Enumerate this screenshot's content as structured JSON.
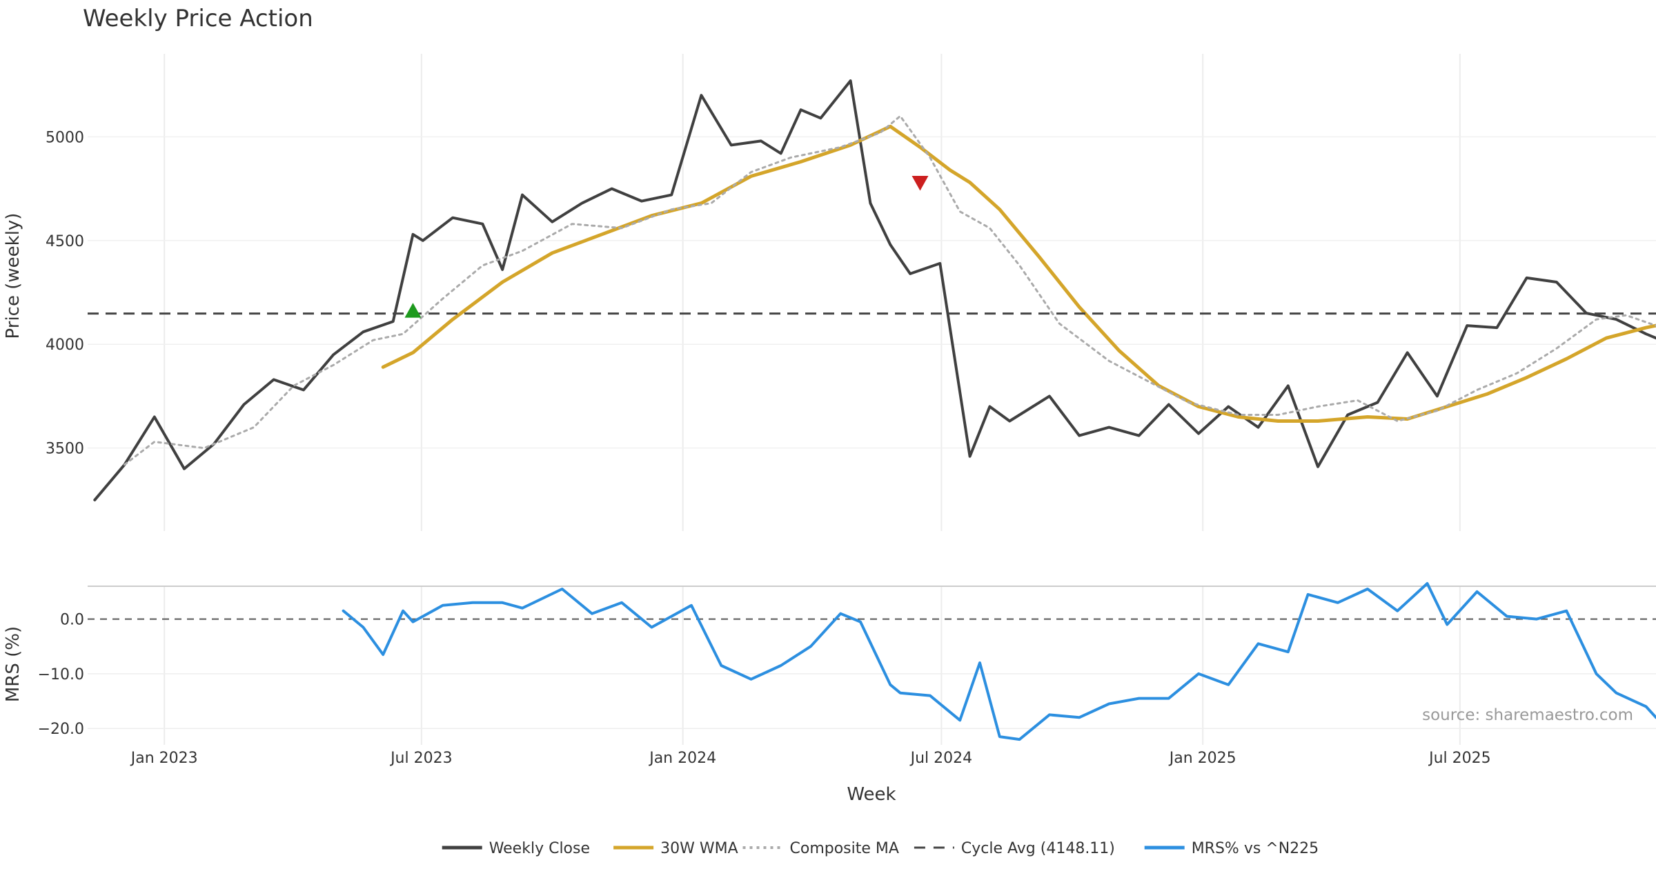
{
  "chart_data": {
    "type": "line",
    "title": "Weekly Price Action",
    "source_note": "source: sharemaestro.com",
    "xlabel": "Week",
    "x_ticks": [
      {
        "label": "Jan 2023",
        "date": "2023-01-01"
      },
      {
        "label": "Jul 2023",
        "date": "2023-07-01"
      },
      {
        "label": "Jan 2024",
        "date": "2024-01-01"
      },
      {
        "label": "Jul 2024",
        "date": "2024-07-01"
      },
      {
        "label": "Jan 2025",
        "date": "2025-01-01"
      },
      {
        "label": "Jul 2025",
        "date": "2025-07-01"
      }
    ],
    "x_range": [
      "2022-11-08",
      "2025-11-16"
    ],
    "price_panel": {
      "ylabel": "Price (weekly)",
      "ylim": [
        3100,
        5400
      ],
      "y_ticks": [
        3500,
        4000,
        4500,
        5000
      ],
      "grid": true,
      "series": [
        {
          "name": "Weekly Close",
          "color": "#404040",
          "style": "solid",
          "x": [
            "2022-11-13",
            "2022-12-04",
            "2022-12-25",
            "2023-01-15",
            "2023-02-05",
            "2023-02-26",
            "2023-03-19",
            "2023-04-09",
            "2023-04-30",
            "2023-05-21",
            "2023-06-11",
            "2023-06-25",
            "2023-07-02",
            "2023-07-23",
            "2023-08-13",
            "2023-08-27",
            "2023-09-10",
            "2023-10-01",
            "2023-10-22",
            "2023-11-12",
            "2023-12-03",
            "2023-12-24",
            "2024-01-14",
            "2024-02-04",
            "2024-02-25",
            "2024-03-10",
            "2024-03-24",
            "2024-04-07",
            "2024-04-28",
            "2024-05-12",
            "2024-05-26",
            "2024-06-09",
            "2024-06-30",
            "2024-07-21",
            "2024-08-04",
            "2024-08-18",
            "2024-09-15",
            "2024-10-06",
            "2024-10-27",
            "2024-11-17",
            "2024-12-08",
            "2024-12-29",
            "2025-01-19",
            "2025-02-09",
            "2025-03-02",
            "2025-03-23",
            "2025-04-13",
            "2025-05-04",
            "2025-05-25",
            "2025-06-15",
            "2025-07-06",
            "2025-07-27",
            "2025-08-17",
            "2025-09-07",
            "2025-09-28",
            "2025-10-19",
            "2025-11-09",
            "2025-11-16"
          ],
          "values": [
            3250,
            3420,
            3650,
            3400,
            3520,
            3710,
            3830,
            3780,
            3950,
            4060,
            4110,
            4530,
            4500,
            4610,
            4580,
            4360,
            4720,
            4590,
            4680,
            4750,
            4690,
            4720,
            5200,
            4960,
            4980,
            4920,
            5130,
            5090,
            5270,
            4680,
            4480,
            4340,
            4390,
            3460,
            3700,
            3630,
            3750,
            3560,
            3600,
            3560,
            3710,
            3570,
            3700,
            3600,
            3800,
            3410,
            3660,
            3720,
            3960,
            3750,
            4090,
            4080,
            4320,
            4300,
            4150,
            4120,
            4050,
            4030
          ]
        },
        {
          "name": "30W WMA",
          "color": "#D4A52A",
          "style": "solid",
          "x": [
            "2023-06-04",
            "2023-06-25",
            "2023-07-23",
            "2023-08-27",
            "2023-10-01",
            "2023-11-05",
            "2023-12-10",
            "2024-01-14",
            "2024-02-18",
            "2024-03-24",
            "2024-04-28",
            "2024-05-26",
            "2024-06-16",
            "2024-07-07",
            "2024-07-21",
            "2024-08-11",
            "2024-09-08",
            "2024-10-06",
            "2024-11-03",
            "2024-12-01",
            "2024-12-29",
            "2025-01-26",
            "2025-02-23",
            "2025-03-23",
            "2025-04-27",
            "2025-05-25",
            "2025-06-22",
            "2025-07-20",
            "2025-08-17",
            "2025-09-14",
            "2025-10-12",
            "2025-11-09",
            "2025-11-16"
          ],
          "values": [
            3890,
            3960,
            4120,
            4300,
            4440,
            4530,
            4620,
            4680,
            4810,
            4880,
            4960,
            5050,
            4950,
            4840,
            4780,
            4650,
            4420,
            4180,
            3970,
            3800,
            3700,
            3650,
            3630,
            3630,
            3650,
            3640,
            3700,
            3760,
            3840,
            3930,
            4030,
            4080,
            4090
          ]
        },
        {
          "name": "Composite MA",
          "color": "#AAAAAA",
          "style": "dotted",
          "x": [
            "2022-12-04",
            "2022-12-25",
            "2023-01-29",
            "2023-03-05",
            "2023-04-02",
            "2023-04-30",
            "2023-05-28",
            "2023-06-18",
            "2023-07-16",
            "2023-08-13",
            "2023-09-10",
            "2023-10-15",
            "2023-11-19",
            "2023-12-24",
            "2024-01-21",
            "2024-02-18",
            "2024-03-17",
            "2024-04-21",
            "2024-05-19",
            "2024-06-02",
            "2024-06-23",
            "2024-07-14",
            "2024-08-04",
            "2024-08-25",
            "2024-09-22",
            "2024-10-27",
            "2024-11-24",
            "2024-12-22",
            "2025-01-26",
            "2025-02-23",
            "2025-03-23",
            "2025-04-20",
            "2025-05-18",
            "2025-06-15",
            "2025-07-13",
            "2025-08-10",
            "2025-09-07",
            "2025-10-05",
            "2025-10-26",
            "2025-11-16"
          ],
          "values": [
            3420,
            3530,
            3500,
            3600,
            3800,
            3900,
            4020,
            4050,
            4220,
            4380,
            4450,
            4580,
            4560,
            4650,
            4680,
            4830,
            4900,
            4950,
            5020,
            5100,
            4900,
            4640,
            4560,
            4380,
            4100,
            3920,
            3820,
            3720,
            3660,
            3660,
            3700,
            3730,
            3630,
            3680,
            3780,
            3860,
            3980,
            4120,
            4140,
            4090
          ]
        },
        {
          "name": "Cycle Avg (4148.11)",
          "color": "#444444",
          "style": "dashed",
          "constant": 4148.11
        }
      ],
      "markers": [
        {
          "type": "buy",
          "shape": "triangle-up",
          "color": "#1E9A1E",
          "date": "2023-06-25",
          "value": 4160
        },
        {
          "type": "sell",
          "shape": "triangle-down",
          "color": "#CC1F1F",
          "date": "2024-06-16",
          "value": 4780
        }
      ]
    },
    "mrs_panel": {
      "ylabel": "MRS (%)",
      "ylim": [
        -23,
        6
      ],
      "y_ticks": [
        {
          "value": 0,
          "label": "0.0"
        },
        {
          "value": -10,
          "label": "−10.0"
        },
        {
          "value": -20,
          "label": "−20.0"
        }
      ],
      "zero_line": "dashed",
      "series": [
        {
          "name": "MRS% vs ^N225",
          "color": "#2C8FE0",
          "style": "solid",
          "x": [
            "2023-05-07",
            "2023-05-21",
            "2023-06-04",
            "2023-06-18",
            "2023-06-25",
            "2023-07-16",
            "2023-08-06",
            "2023-08-27",
            "2023-09-10",
            "2023-10-08",
            "2023-10-29",
            "2023-11-19",
            "2023-12-10",
            "2024-01-07",
            "2024-01-28",
            "2024-02-18",
            "2024-03-10",
            "2024-03-31",
            "2024-04-21",
            "2024-05-05",
            "2024-05-26",
            "2024-06-02",
            "2024-06-23",
            "2024-07-14",
            "2024-07-28",
            "2024-08-11",
            "2024-08-25",
            "2024-09-15",
            "2024-10-06",
            "2024-10-27",
            "2024-11-17",
            "2024-12-08",
            "2024-12-29",
            "2025-01-19",
            "2025-02-09",
            "2025-03-02",
            "2025-03-16",
            "2025-04-06",
            "2025-04-27",
            "2025-05-18",
            "2025-06-08",
            "2025-06-22",
            "2025-07-13",
            "2025-08-03",
            "2025-08-24",
            "2025-09-14",
            "2025-10-05",
            "2025-10-19",
            "2025-11-09",
            "2025-11-16"
          ],
          "values": [
            1.5,
            -1.5,
            -6.5,
            1.5,
            -0.5,
            2.5,
            3.0,
            3.0,
            2.0,
            5.5,
            1.0,
            3.0,
            -1.5,
            2.5,
            -8.5,
            -11.0,
            -8.5,
            -5.0,
            1.0,
            -0.5,
            -12.0,
            -13.5,
            -14.0,
            -18.5,
            -8.0,
            -21.5,
            -22.0,
            -17.5,
            -18.0,
            -15.5,
            -14.5,
            -14.5,
            -10.0,
            -12.0,
            -4.5,
            -6.0,
            4.5,
            3.0,
            5.5,
            1.5,
            6.5,
            -1.0,
            5.0,
            0.5,
            0.0,
            1.5,
            -10.0,
            -13.5,
            -16.0,
            -18.0
          ]
        }
      ]
    },
    "legend": {
      "placement": "bottom-center",
      "entries": [
        {
          "label": "Weekly Close",
          "color": "#404040",
          "style": "solid"
        },
        {
          "label": "30W WMA",
          "color": "#D4A52A",
          "style": "solid"
        },
        {
          "label": "Composite MA",
          "color": "#AAAAAA",
          "style": "dotted"
        },
        {
          "label": "Cycle Avg (4148.11)",
          "color": "#444444",
          "style": "dashed"
        },
        {
          "label": "MRS% vs ^N225",
          "color": "#2C8FE0",
          "style": "solid"
        }
      ]
    }
  }
}
